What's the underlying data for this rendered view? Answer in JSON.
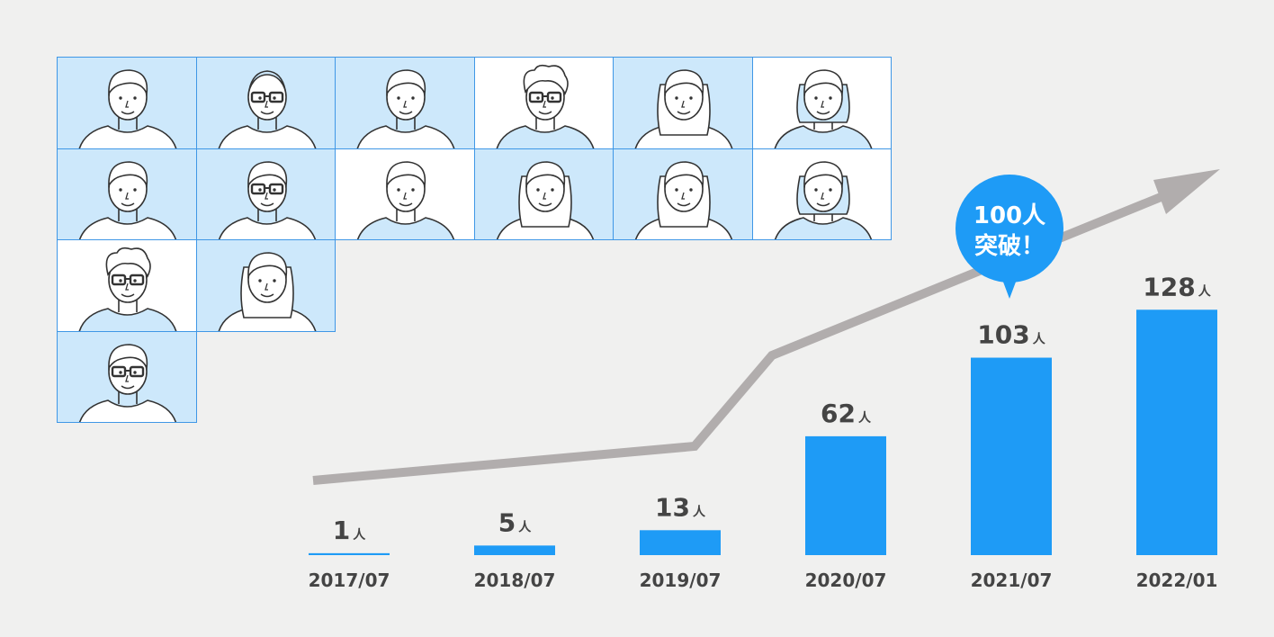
{
  "colors": {
    "bar": "#1e9bf6",
    "trend": "#b1adad",
    "tile_blue": "#cde8fb",
    "tile_white": "#ffffff",
    "tile_border": "#3f97e6",
    "line_art": "#333333",
    "text": "#444444",
    "background": "#f0f0ef",
    "bubble": "#1e9bf6"
  },
  "portraits": {
    "count": 15,
    "tiles": [
      {
        "id": "p1",
        "bg": "blue",
        "glasses": false,
        "hair": "short"
      },
      {
        "id": "p2",
        "bg": "blue",
        "glasses": true,
        "hair": "bald"
      },
      {
        "id": "p3",
        "bg": "blue",
        "glasses": false,
        "hair": "swept"
      },
      {
        "id": "p4",
        "bg": "white",
        "glasses": true,
        "hair": "fluffy"
      },
      {
        "id": "p5",
        "bg": "blue",
        "glasses": false,
        "hair": "long"
      },
      {
        "id": "p6",
        "bg": "white",
        "glasses": false,
        "hair": "bob"
      },
      {
        "id": "p7",
        "bg": "blue",
        "glasses": false,
        "hair": "swept"
      },
      {
        "id": "p8",
        "bg": "blue",
        "glasses": true,
        "hair": "short"
      },
      {
        "id": "p9",
        "bg": "white",
        "glasses": false,
        "hair": "short"
      },
      {
        "id": "p10",
        "bg": "blue",
        "glasses": false,
        "hair": "long"
      },
      {
        "id": "p11",
        "bg": "blue",
        "glasses": false,
        "hair": "long"
      },
      {
        "id": "p12",
        "bg": "white",
        "glasses": false,
        "hair": "bob"
      },
      {
        "id": "p13",
        "bg": "white",
        "glasses": true,
        "hair": "fluffy"
      },
      {
        "id": "p14",
        "bg": "blue",
        "glasses": false,
        "hair": "long"
      },
      {
        "id": "p15",
        "bg": "blue",
        "glasses": true,
        "hair": "short"
      }
    ]
  },
  "callout": {
    "line1": "100人",
    "line2": "突破！"
  },
  "chart_data": {
    "type": "bar",
    "title": "",
    "xlabel": "",
    "ylabel": "",
    "unit": "人",
    "categories": [
      "2017/07",
      "2018/07",
      "2019/07",
      "2020/07",
      "2021/07",
      "2022/01"
    ],
    "values": [
      1,
      5,
      13,
      62,
      103,
      128
    ],
    "value_labels": [
      "1",
      "5",
      "13",
      "62",
      "103",
      "128"
    ],
    "ylim": [
      0,
      130
    ],
    "grid": false,
    "legend": "none",
    "trend_arrow": "upward arrow through the bars"
  }
}
